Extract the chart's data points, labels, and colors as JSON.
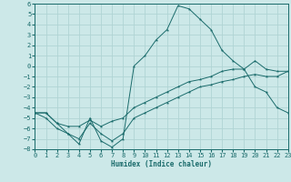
{
  "xlabel": "Humidex (Indice chaleur)",
  "bg_color": "#cce8e8",
  "grid_color": "#b0d4d4",
  "line_color": "#1a6b6b",
  "x_min": 0,
  "x_max": 23,
  "y_min": -8,
  "y_max": 6,
  "x_ticks": [
    0,
    1,
    2,
    3,
    4,
    5,
    6,
    7,
    8,
    9,
    10,
    11,
    12,
    13,
    14,
    15,
    16,
    17,
    18,
    19,
    20,
    21,
    22,
    23
  ],
  "y_ticks": [
    -8,
    -7,
    -6,
    -5,
    -4,
    -3,
    -2,
    -1,
    0,
    1,
    2,
    3,
    4,
    5,
    6
  ],
  "series_top_x": [
    0,
    1,
    2,
    3,
    4,
    5,
    6,
    7,
    8,
    9,
    10,
    11,
    12,
    13,
    14,
    15,
    16,
    17,
    18,
    19,
    20,
    21,
    22,
    23
  ],
  "series_top_y": [
    -4.5,
    -4.5,
    -5.5,
    -6.5,
    -7.5,
    -5.0,
    -7.2,
    -7.8,
    -7.0,
    0.0,
    1.0,
    2.5,
    3.5,
    5.8,
    5.5,
    4.5,
    3.5,
    1.5,
    0.5,
    -0.3,
    -2.0,
    -2.5,
    -4.0,
    -4.5
  ],
  "series_mid_x": [
    0,
    1,
    2,
    3,
    4,
    5,
    6,
    7,
    8,
    9,
    10,
    11,
    12,
    13,
    14,
    15,
    16,
    17,
    18,
    19,
    20,
    21,
    22,
    23
  ],
  "series_mid_y": [
    -4.5,
    -4.5,
    -5.5,
    -5.8,
    -5.8,
    -5.2,
    -5.8,
    -5.3,
    -5.0,
    -4.0,
    -3.5,
    -3.0,
    -2.5,
    -2.0,
    -1.5,
    -1.3,
    -1.0,
    -0.5,
    -0.3,
    -0.3,
    0.5,
    -0.3,
    -0.5,
    -0.5
  ],
  "series_bot_x": [
    0,
    1,
    2,
    3,
    4,
    5,
    6,
    7,
    8,
    9,
    10,
    11,
    12,
    13,
    14,
    15,
    16,
    17,
    18,
    19,
    20,
    21,
    22,
    23
  ],
  "series_bot_y": [
    -4.5,
    -5.0,
    -6.0,
    -6.5,
    -7.0,
    -5.5,
    -6.5,
    -7.2,
    -6.5,
    -5.0,
    -4.5,
    -4.0,
    -3.5,
    -3.0,
    -2.5,
    -2.0,
    -1.8,
    -1.5,
    -1.3,
    -1.0,
    -0.8,
    -1.0,
    -1.0,
    -0.5
  ]
}
